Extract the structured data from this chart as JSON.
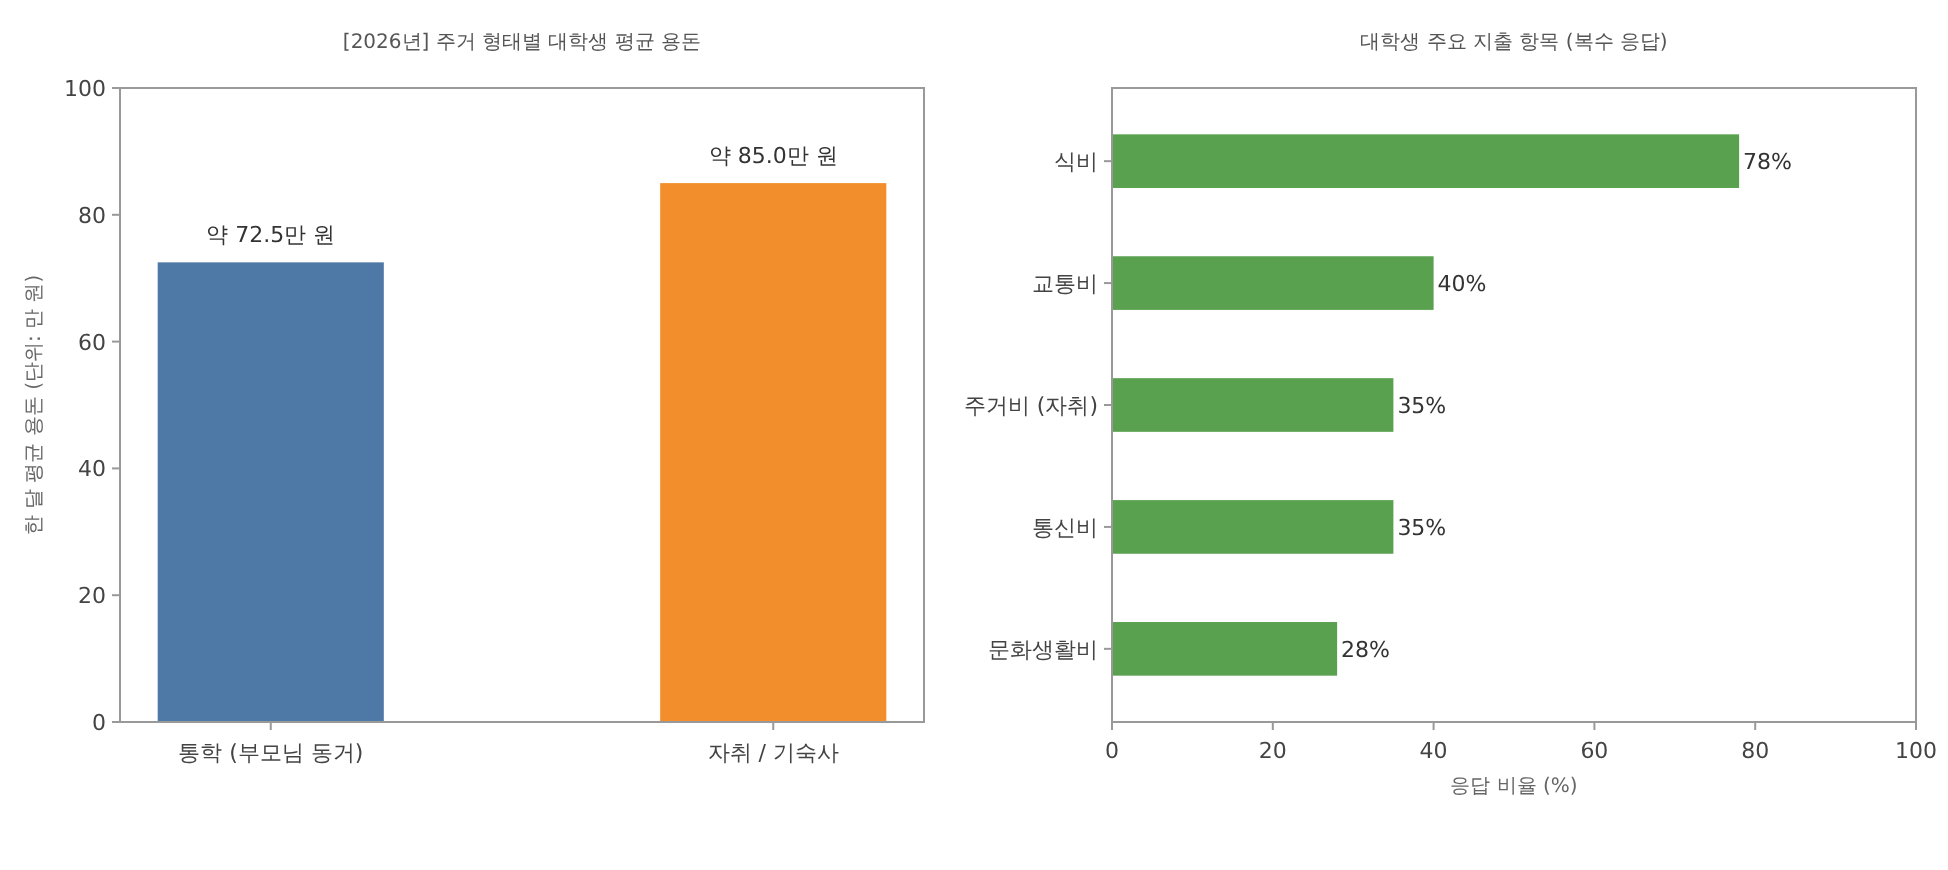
{
  "chart_data": [
    {
      "type": "bar",
      "title": "[2026년] 주거 형태별 대학생 평균 용돈",
      "ylabel": "한 달 평균 용돈 (단위: 만 원)",
      "categories": [
        "통학 (부모님 동거)",
        "자취 / 기숙사"
      ],
      "values": [
        72.5,
        85.0
      ],
      "colors": [
        "#4e78a6",
        "#f28e2c"
      ],
      "value_labels": [
        "약 72.5만 원",
        "약 85.0만 원"
      ],
      "ylim": [
        0,
        100
      ],
      "yticks": [
        0,
        20,
        40,
        60,
        80,
        100
      ],
      "grid": false
    },
    {
      "type": "bar",
      "orientation": "horizontal",
      "title": "대학생 주요 지출 항목 (복수 응답)",
      "xlabel": "응답 비율 (%)",
      "categories": [
        "식비",
        "교통비",
        "주거비 (자취)",
        "통신비",
        "문화생활비"
      ],
      "values": [
        78,
        40,
        35,
        35,
        28
      ],
      "color": "#59a14f",
      "value_labels": [
        "78%",
        "40%",
        "35%",
        "35%",
        "28%"
      ],
      "xlim": [
        0,
        100
      ],
      "xticks": [
        0,
        20,
        40,
        60,
        80,
        100
      ],
      "grid": false
    }
  ]
}
